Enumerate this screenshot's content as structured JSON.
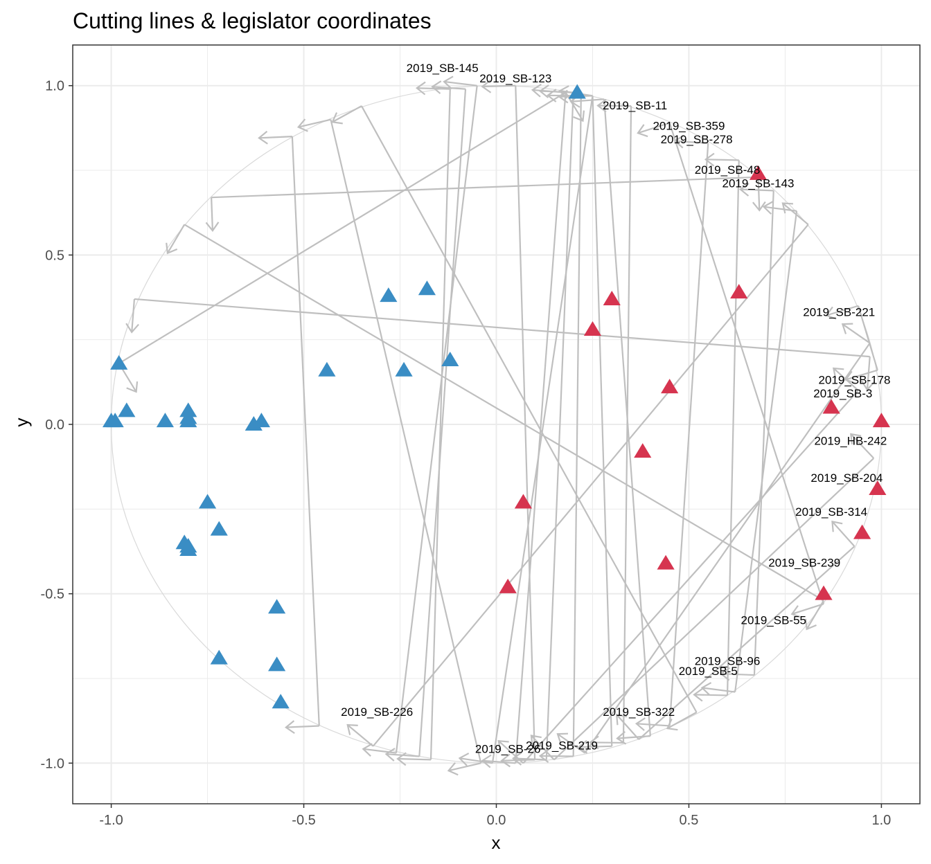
{
  "chart_data": {
    "type": "scatter",
    "title": "Cutting lines & legislator coordinates",
    "xlabel": "x",
    "ylabel": "y",
    "xlim": [
      -1.1,
      1.1
    ],
    "ylim": [
      -1.12,
      1.12
    ],
    "x_ticks": [
      -1.0,
      -0.5,
      0.0,
      0.5,
      1.0
    ],
    "x_tick_labels": [
      "-1.0",
      "-0.5",
      "0.0",
      "0.5",
      "1.0"
    ],
    "y_ticks": [
      -1.0,
      -0.5,
      0.0,
      0.5,
      1.0
    ],
    "y_tick_labels": [
      "-1.0",
      "-0.5",
      "0.0",
      "0.5",
      "1.0"
    ],
    "grid": true,
    "reference_circle": {
      "center": [
        0,
        0
      ],
      "radius": 1
    },
    "colors": {
      "group_blue": "#3a8dc4",
      "group_red": "#d6344f",
      "cutting_line": "#bfbfbf",
      "circle": "#d9d9d9",
      "grid": "#ebebeb"
    },
    "series": [
      {
        "color": "#3a8dc4",
        "marker": "triangle",
        "points": [
          [
            -0.98,
            0.18
          ],
          [
            -0.96,
            0.04
          ],
          [
            -1.0,
            0.01
          ],
          [
            -0.99,
            0.01
          ],
          [
            -0.86,
            0.01
          ],
          [
            -0.8,
            0.04
          ],
          [
            -0.8,
            0.02
          ],
          [
            -0.8,
            0.01
          ],
          [
            -0.63,
            0.0
          ],
          [
            -0.61,
            0.01
          ],
          [
            -0.75,
            -0.23
          ],
          [
            -0.72,
            -0.31
          ],
          [
            -0.81,
            -0.35
          ],
          [
            -0.8,
            -0.36
          ],
          [
            -0.8,
            -0.37
          ],
          [
            -0.57,
            -0.54
          ],
          [
            -0.72,
            -0.69
          ],
          [
            -0.57,
            -0.71
          ],
          [
            -0.56,
            -0.82
          ],
          [
            -0.44,
            0.16
          ],
          [
            -0.28,
            0.38
          ],
          [
            -0.18,
            0.4
          ],
          [
            -0.24,
            0.16
          ],
          [
            -0.12,
            0.19
          ],
          [
            0.21,
            0.98
          ]
        ]
      },
      {
        "color": "#d6344f",
        "marker": "triangle",
        "points": [
          [
            0.25,
            0.28
          ],
          [
            0.3,
            0.37
          ],
          [
            0.63,
            0.39
          ],
          [
            0.68,
            0.74
          ],
          [
            0.45,
            0.11
          ],
          [
            0.38,
            -0.08
          ],
          [
            0.07,
            -0.23
          ],
          [
            0.03,
            -0.48
          ],
          [
            0.44,
            -0.41
          ],
          [
            0.87,
            0.05
          ],
          [
            1.0,
            0.01
          ],
          [
            0.99,
            -0.19
          ],
          [
            0.95,
            -0.32
          ],
          [
            0.85,
            -0.5
          ]
        ]
      }
    ],
    "cutting_lines": [
      {
        "from": [
          -0.98,
          0.18
        ],
        "to": [
          0.18,
          0.98
        ]
      },
      {
        "from": [
          -0.74,
          0.67
        ],
        "to": [
          0.68,
          0.73
        ]
      },
      {
        "from": [
          -0.81,
          0.59
        ],
        "to": [
          0.85,
          -0.52
        ]
      },
      {
        "from": [
          -0.94,
          0.37
        ],
        "to": [
          0.97,
          0.2
        ]
      },
      {
        "from": [
          -0.53,
          0.85
        ],
        "to": [
          -0.46,
          -0.89
        ]
      },
      {
        "from": [
          -0.43,
          0.9
        ],
        "to": [
          -0.04,
          -1.0
        ]
      },
      {
        "from": [
          -0.35,
          0.94
        ],
        "to": [
          0.52,
          -0.85
        ]
      },
      {
        "from": [
          -0.12,
          0.99
        ],
        "to": [
          -0.17,
          -0.99
        ]
      },
      {
        "from": [
          -0.08,
          0.99
        ],
        "to": [
          -0.2,
          -0.98
        ]
      },
      {
        "from": [
          -0.05,
          1.0
        ],
        "to": [
          -0.26,
          -0.97
        ]
      },
      {
        "from": [
          0.05,
          1.0
        ],
        "to": [
          0.1,
          -0.99
        ]
      },
      {
        "from": [
          0.18,
          0.98
        ],
        "to": [
          0.05,
          -1.0
        ]
      },
      {
        "from": [
          0.2,
          0.98
        ],
        "to": [
          0.13,
          -0.99
        ]
      },
      {
        "from": [
          0.22,
          0.97
        ],
        "to": [
          0.2,
          -0.98
        ]
      },
      {
        "from": [
          0.25,
          0.97
        ],
        "to": [
          0.3,
          -0.95
        ]
      },
      {
        "from": [
          0.28,
          0.96
        ],
        "to": [
          0.4,
          -0.92
        ]
      },
      {
        "from": [
          0.35,
          0.94
        ],
        "to": [
          0.33,
          -0.94
        ]
      },
      {
        "from": [
          0.45,
          0.89
        ],
        "to": [
          0.85,
          -0.53
        ]
      },
      {
        "from": [
          0.55,
          0.83
        ],
        "to": [
          0.45,
          -0.89
        ]
      },
      {
        "from": [
          0.63,
          0.78
        ],
        "to": [
          0.6,
          -0.8
        ]
      },
      {
        "from": [
          0.72,
          0.69
        ],
        "to": [
          0.67,
          -0.74
        ]
      },
      {
        "from": [
          0.78,
          0.63
        ],
        "to": [
          0.62,
          -0.79
        ]
      },
      {
        "from": [
          0.81,
          0.59
        ],
        "to": [
          -0.32,
          -0.95
        ]
      },
      {
        "from": [
          0.94,
          0.35
        ],
        "to": [
          0.99,
          0.16
        ]
      },
      {
        "from": [
          0.97,
          0.24
        ],
        "to": [
          0.23,
          -0.97
        ]
      },
      {
        "from": [
          0.94,
          0.1
        ],
        "to": [
          0.07,
          -1.0
        ]
      },
      {
        "from": [
          0.98,
          -0.1
        ],
        "to": [
          0.15,
          -0.99
        ]
      },
      {
        "from": [
          0.93,
          -0.36
        ],
        "to": [
          0.37,
          -0.93
        ]
      },
      {
        "from": [
          0.25,
          0.97
        ],
        "to": [
          -0.01,
          -1.0
        ]
      }
    ],
    "annotations": [
      {
        "text": "2019_SB-145",
        "x": -0.14,
        "y": 1.04
      },
      {
        "text": "2019_SB-123",
        "x": 0.05,
        "y": 1.01
      },
      {
        "text": "2019_SB-11",
        "x": 0.36,
        "y": 0.93
      },
      {
        "text": "2019_SB-359",
        "x": 0.5,
        "y": 0.87
      },
      {
        "text": "2019_SB-278",
        "x": 0.52,
        "y": 0.83
      },
      {
        "text": "2019_SB-48",
        "x": 0.6,
        "y": 0.74
      },
      {
        "text": "2019_SB-143",
        "x": 0.68,
        "y": 0.7
      },
      {
        "text": "2019_SB-221",
        "x": 0.89,
        "y": 0.32
      },
      {
        "text": "2019_SB-178",
        "x": 0.93,
        "y": 0.12
      },
      {
        "text": "2019_SB-3",
        "x": 0.9,
        "y": 0.08
      },
      {
        "text": "2019_HB-242",
        "x": 0.92,
        "y": -0.06
      },
      {
        "text": "2019_SB-204",
        "x": 0.91,
        "y": -0.17
      },
      {
        "text": "2019_SB-314",
        "x": 0.87,
        "y": -0.27
      },
      {
        "text": "2019_SB-239",
        "x": 0.8,
        "y": -0.42
      },
      {
        "text": "2019_SB-55",
        "x": 0.72,
        "y": -0.59
      },
      {
        "text": "2019_SB-96",
        "x": 0.6,
        "y": -0.71
      },
      {
        "text": "2019_SB-5",
        "x": 0.55,
        "y": -0.74
      },
      {
        "text": "2019_SB-322",
        "x": 0.37,
        "y": -0.86
      },
      {
        "text": "2019_SB-219",
        "x": 0.17,
        "y": -0.96
      },
      {
        "text": "2019_SB-26",
        "x": 0.03,
        "y": -0.97
      },
      {
        "text": "2019_SB-226",
        "x": -0.31,
        "y": -0.86
      }
    ]
  }
}
